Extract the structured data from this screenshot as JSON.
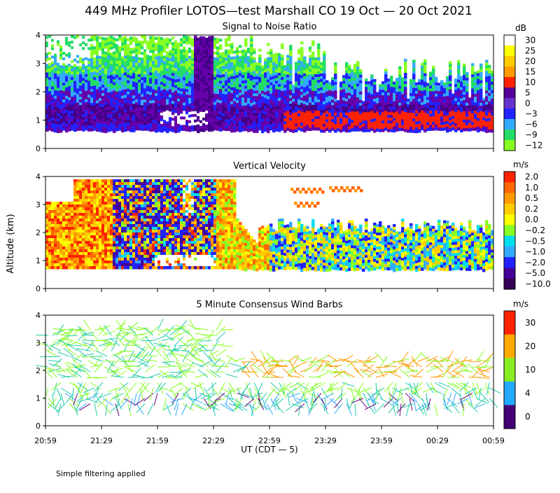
{
  "title": "449 MHz Profiler LOTOS—test Marshall CO 19 Oct — 20 Oct 2021",
  "ylabel": "Altitude (km)",
  "xlabel": "UT  (CDT — 5)",
  "footnote": "Simple filtering applied",
  "x_ticks": [
    "20:59",
    "21:29",
    "21:59",
    "22:29",
    "22:59",
    "23:29",
    "23:59",
    "00:29",
    "00:59"
  ],
  "y_ticks": [
    "0",
    "1",
    "2",
    "3",
    "4"
  ],
  "colors": {
    "white": "#ffffff",
    "yellow": "#ffff00",
    "gold": "#ffcc00",
    "orange": "#ff9900",
    "dark_orange": "#ff6600",
    "red": "#ff2200",
    "dark_purple": "#440088",
    "purple": "#6600aa",
    "blue": "#2222ff",
    "sky_blue": "#33aaff",
    "green": "#22dd66",
    "lime": "#88ff22",
    "cyan": "#00ddee",
    "dark_blue": "#1111cc",
    "indigo": "#440099",
    "dark_violet": "#330055",
    "violet": "#660077",
    "teal": "#22ccaa"
  },
  "chart_data": [
    {
      "type": "heatmap",
      "title": "Signal to Noise Ratio",
      "unit": "dB",
      "ylim": [
        0,
        4
      ],
      "colorbar": [
        {
          "label": "30",
          "color": "#ffffff"
        },
        {
          "label": "25",
          "color": "#ffff00"
        },
        {
          "label": "20",
          "color": "#ffcc00"
        },
        {
          "label": "15",
          "color": "#ff9900"
        },
        {
          "label": "10",
          "color": "#ff2200"
        },
        {
          "label": "5",
          "color": "#550099"
        },
        {
          "label": "0",
          "color": "#6633cc"
        },
        {
          "label": "−3",
          "color": "#2222ff"
        },
        {
          "label": "−6",
          "color": "#33aaff"
        },
        {
          "label": "−9",
          "color": "#22dd66"
        },
        {
          "label": "−12",
          "color": "#88ff22"
        }
      ]
    },
    {
      "type": "heatmap",
      "title": "Vertical Velocity",
      "unit": "m/s",
      "ylim": [
        0,
        4
      ],
      "colorbar": [
        {
          "label": "2.0",
          "color": "#ff2200"
        },
        {
          "label": "1.0",
          "color": "#ff6600"
        },
        {
          "label": "0.5",
          "color": "#ff9900"
        },
        {
          "label": "0.2",
          "color": "#ffcc00"
        },
        {
          "label": "0.0",
          "color": "#ffff00"
        },
        {
          "label": "−0.2",
          "color": "#88ff22"
        },
        {
          "label": "−0.5",
          "color": "#00ddee"
        },
        {
          "label": "−1.0",
          "color": "#33aaff"
        },
        {
          "label": "−2.0",
          "color": "#2222ff"
        },
        {
          "label": "−5.0",
          "color": "#440099"
        },
        {
          "label": "−10.0",
          "color": "#330055"
        }
      ]
    },
    {
      "type": "scatter",
      "title": "5 Minute Consensus Wind Barbs",
      "unit": "m/s",
      "ylim": [
        0,
        4
      ],
      "colorbar": [
        {
          "label": "30",
          "color": "#ff2200"
        },
        {
          "label": "20",
          "color": "#ffaa00"
        },
        {
          "label": "10",
          "color": "#88ee22"
        },
        {
          "label": "4",
          "color": "#22aaff"
        },
        {
          "label": "0",
          "color": "#440077"
        }
      ]
    }
  ]
}
